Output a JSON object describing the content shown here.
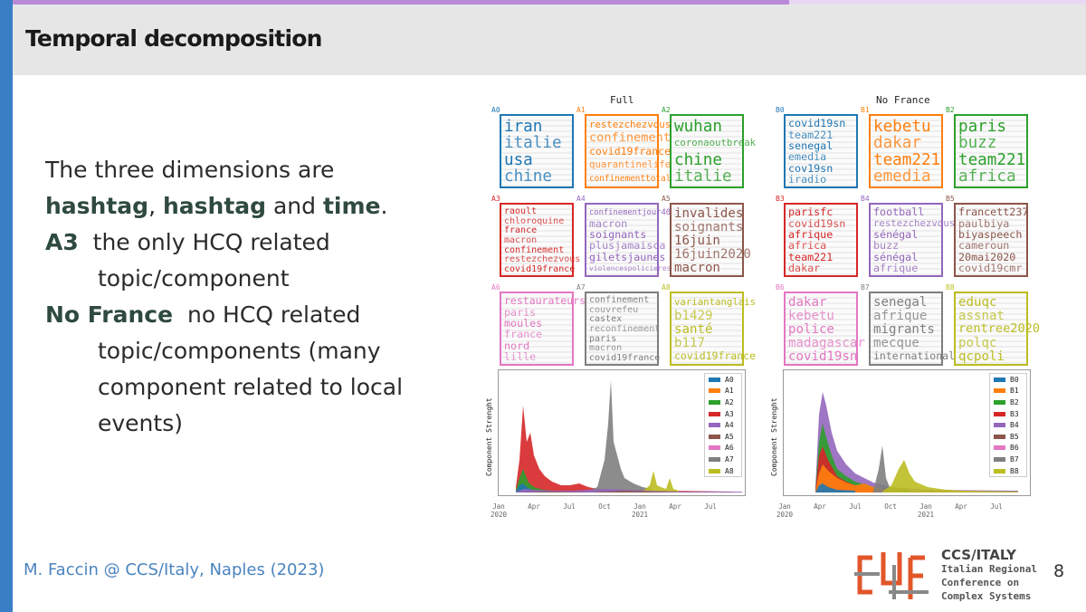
{
  "slide": {
    "title": "Temporal decomposition",
    "page_number": "8",
    "footer": "M. Faccin @ CCS/Italy, Naples (2023)",
    "conference": {
      "acronym": "CCS/ITALY",
      "line1": "Italian Regional",
      "line2": "Conference on",
      "line3": "Complex Systems"
    },
    "colors": {
      "accent_blue": "#3a7fc6",
      "top_bar": "#b98ad8",
      "header_bg": "#e6e6e6"
    }
  },
  "body": {
    "line1": "The three dimensions are",
    "hashtag1": "hashtag",
    "comma": ", ",
    "hashtag2": "hashtag",
    "and": " and ",
    "time": "time",
    "period": ".",
    "a3_label": "A3",
    "a3_text_1": "the only HCQ related",
    "a3_text_2": "topic/component",
    "nofrance_label": "No France",
    "nofrance_text_1": "no HCQ related",
    "nofrance_text_2": "topic/components (many",
    "nofrance_text_3": "component related to local",
    "nofrance_text_4": "events)"
  },
  "figure": {
    "full_title": "Full",
    "nofrance_title": "No France",
    "ylabel": "Component Strenght",
    "x_ticks": [
      {
        "label": "Jan",
        "sub": "2020"
      },
      {
        "label": "Apr",
        "sub": ""
      },
      {
        "label": "Jul",
        "sub": ""
      },
      {
        "label": "Oct",
        "sub": ""
      },
      {
        "label": "Jan",
        "sub": "2021"
      },
      {
        "label": "Apr",
        "sub": ""
      },
      {
        "label": "Jul",
        "sub": ""
      }
    ],
    "full_cells": [
      {
        "tag": "A0",
        "color": "#1f77b4",
        "words": [
          "iran",
          "italie",
          "usa",
          "chine"
        ]
      },
      {
        "tag": "A1",
        "color": "#ff7f0e",
        "words": [
          "restezchezvous",
          "confinement",
          "covid19france",
          "quarantinelife",
          "confinementtotal"
        ]
      },
      {
        "tag": "A2",
        "color": "#2ca02c",
        "words": [
          "wuhan",
          "coronaoutbreak",
          "chine",
          "italie"
        ]
      },
      {
        "tag": "A3",
        "color": "#d62728",
        "words": [
          "raoult",
          "chloroquine",
          "france",
          "macron",
          "confinement",
          "restezchezvous",
          "covid19france"
        ]
      },
      {
        "tag": "A4",
        "color": "#9467bd",
        "words": [
          "confinementjour40",
          "macron",
          "soignants",
          "plusjamaisca",
          "giletsjaunes",
          "violencespolicieres"
        ]
      },
      {
        "tag": "A5",
        "color": "#8c564b",
        "words": [
          "invalides",
          "soignants",
          "16juin",
          "16juin2020",
          "macron"
        ]
      },
      {
        "tag": "A6",
        "color": "#e377c2",
        "words": [
          "restaurateurs",
          "paris",
          "moules",
          "france",
          "nord",
          "lille"
        ]
      },
      {
        "tag": "A7",
        "color": "#7f7f7f",
        "words": [
          "confinement",
          "couvrefeu",
          "castex",
          "reconfinement",
          "paris",
          "macron",
          "covid19france"
        ]
      },
      {
        "tag": "A8",
        "color": "#bcbd22",
        "words": [
          "variantanglais",
          "b1429",
          "santé",
          "b117",
          "covid19france"
        ]
      }
    ],
    "nofrance_cells": [
      {
        "tag": "B0",
        "color": "#1f77b4",
        "words": [
          "covid19sn",
          "team221",
          "senegal",
          "emedia",
          "cov19sn",
          "iradio"
        ]
      },
      {
        "tag": "B1",
        "color": "#ff7f0e",
        "words": [
          "kebetu",
          "dakar",
          "team221",
          "emedia"
        ]
      },
      {
        "tag": "B2",
        "color": "#2ca02c",
        "words": [
          "paris",
          "buzz",
          "team221",
          "africa"
        ]
      },
      {
        "tag": "B3",
        "color": "#d62728",
        "words": [
          "parisfc",
          "covid19sn",
          "afrique",
          "africa",
          "team221",
          "dakar"
        ]
      },
      {
        "tag": "B4",
        "color": "#9467bd",
        "words": [
          "football",
          "restezchezvous",
          "sénégal",
          "buzz",
          "sénégal",
          "afrique"
        ]
      },
      {
        "tag": "B5",
        "color": "#8c564b",
        "words": [
          "francett237",
          "paulbiya",
          "biyaspeech",
          "cameroun",
          "20mai2020",
          "covid19cmr"
        ]
      },
      {
        "tag": "B6",
        "color": "#e377c2",
        "words": [
          "dakar",
          "kebetu",
          "police",
          "madagascar",
          "covid19sn"
        ]
      },
      {
        "tag": "B7",
        "color": "#7f7f7f",
        "words": [
          "senegal",
          "afrique",
          "migrants",
          "mecque",
          "international"
        ]
      },
      {
        "tag": "B8",
        "color": "#bcbd22",
        "words": [
          "eduqc",
          "assnat",
          "rentree2020",
          "polqc",
          "qcpoli"
        ]
      }
    ],
    "full_legend": [
      "A0",
      "A1",
      "A2",
      "A3",
      "A4",
      "A5",
      "A6",
      "A7",
      "A8"
    ],
    "nofrance_legend": [
      "B0",
      "B1",
      "B2",
      "B3",
      "B4",
      "B5",
      "B6",
      "B7",
      "B8"
    ],
    "series_colors": [
      "#1f77b4",
      "#ff7f0e",
      "#2ca02c",
      "#d62728",
      "#9467bd",
      "#8c564b",
      "#e377c2",
      "#7f7f7f",
      "#bcbd22"
    ]
  }
}
